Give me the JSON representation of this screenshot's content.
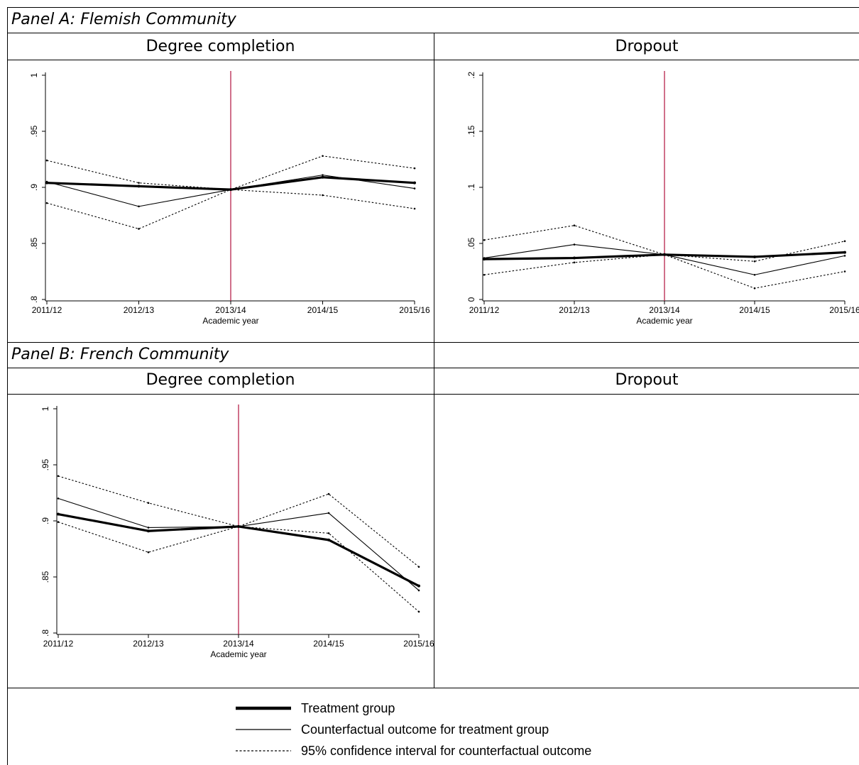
{
  "panels": {
    "a_title": "Panel A: Flemish Community",
    "b_title": "Panel B: French Community"
  },
  "columns": {
    "a_left": "Degree completion",
    "a_right": "Dropout",
    "b_left": "Degree completion",
    "b_right": "Dropout"
  },
  "legend": {
    "treatment": "Treatment group",
    "counterfactual": "Counterfactual outcome for treatment group",
    "ci": "95% confidence interval for counterfactual outcome"
  },
  "colors": {
    "reform_line": "#b0123c",
    "series": "#000000"
  },
  "chart_data": [
    {
      "id": "flemish_completion",
      "type": "line",
      "xlabel": "Academic year",
      "ylabel": "",
      "categories": [
        "2011/12",
        "2012/13",
        "2013/14",
        "2014/15",
        "2015/16"
      ],
      "yticks": [
        0.8,
        0.85,
        0.9,
        0.95,
        1
      ],
      "ytick_labels": [
        ".8",
        ".85",
        ".9",
        ".95",
        "1"
      ],
      "ylim": [
        0.8,
        1.0
      ],
      "reform_index": 2,
      "series": [
        {
          "role": "treatment",
          "values": [
            0.904,
            0.901,
            0.898,
            0.909,
            0.904
          ]
        },
        {
          "role": "counterfactual",
          "values": [
            0.905,
            0.883,
            0.898,
            0.911,
            0.899
          ]
        },
        {
          "role": "ci_upper",
          "values": [
            0.924,
            0.904,
            0.898,
            0.928,
            0.917
          ]
        },
        {
          "role": "ci_lower",
          "values": [
            0.886,
            0.863,
            0.898,
            0.893,
            0.881
          ]
        }
      ]
    },
    {
      "id": "flemish_dropout",
      "type": "line",
      "xlabel": "Academic year",
      "ylabel": "",
      "categories": [
        "2011/12",
        "2012/13",
        "2013/14",
        "2014/15",
        "2015/16"
      ],
      "yticks": [
        0,
        0.05,
        0.1,
        0.15,
        0.2
      ],
      "ytick_labels": [
        "0",
        ".05",
        ".1",
        ".15",
        ".2"
      ],
      "ylim": [
        0,
        0.2
      ],
      "reform_index": 2,
      "series": [
        {
          "role": "treatment",
          "values": [
            0.036,
            0.037,
            0.04,
            0.038,
            0.042
          ]
        },
        {
          "role": "counterfactual",
          "values": [
            0.037,
            0.049,
            0.04,
            0.022,
            0.039
          ]
        },
        {
          "role": "ci_upper",
          "values": [
            0.053,
            0.066,
            0.04,
            0.034,
            0.052
          ]
        },
        {
          "role": "ci_lower",
          "values": [
            0.022,
            0.033,
            0.04,
            0.01,
            0.025
          ]
        }
      ]
    },
    {
      "id": "french_completion",
      "type": "line",
      "xlabel": "Academic year",
      "ylabel": "",
      "categories": [
        "2011/12",
        "2012/13",
        "2013/14",
        "2014/15",
        "2015/16"
      ],
      "yticks": [
        0.8,
        0.85,
        0.9,
        0.95,
        1
      ],
      "ytick_labels": [
        ".8",
        ".85",
        ".9",
        ".95",
        "1"
      ],
      "ylim": [
        0.8,
        1.0
      ],
      "reform_index": 2,
      "series": [
        {
          "role": "treatment",
          "values": [
            0.906,
            0.891,
            0.895,
            0.883,
            0.842
          ]
        },
        {
          "role": "counterfactual",
          "values": [
            0.92,
            0.894,
            0.895,
            0.907,
            0.838
          ]
        },
        {
          "role": "ci_upper",
          "values": [
            0.94,
            0.916,
            0.895,
            0.924,
            0.859
          ]
        },
        {
          "role": "ci_lower",
          "values": [
            0.899,
            0.872,
            0.895,
            0.889,
            0.819
          ]
        }
      ]
    }
  ]
}
